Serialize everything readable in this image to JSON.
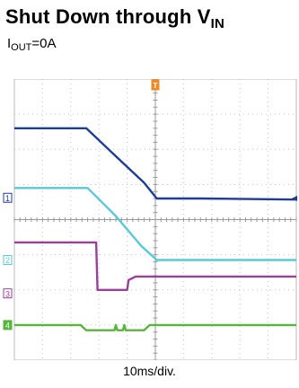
{
  "title": {
    "main": "Shut Down through V",
    "sub": "IN"
  },
  "subtitle": {
    "main": "I",
    "sub": "OUT",
    "rest": "=0A"
  },
  "chart_data": {
    "type": "line",
    "xlabel": "10ms/div.",
    "grid": true,
    "x_divisions": 10,
    "y_divisions": 8,
    "trigger_marker": "T",
    "right_marker": "◂",
    "series": [
      {
        "channel": "1",
        "color": "#1f3c96",
        "x": [
          0,
          2.55,
          3.8,
          4.6,
          5.05,
          6.6,
          10
        ],
        "y": [
          6.6,
          6.6,
          5.65,
          5.05,
          4.6,
          4.6,
          4.57
        ],
        "ground": 4.62
      },
      {
        "channel": "2",
        "color": "#5bc8d8",
        "x": [
          0,
          2.6,
          3.6,
          4.5,
          5.05,
          6.6,
          10
        ],
        "y": [
          4.9,
          4.9,
          4.1,
          3.25,
          2.85,
          2.85,
          2.85
        ],
        "ground": 2.85
      },
      {
        "channel": "3",
        "color": "#9a3f9c",
        "x": [
          0,
          2.9,
          2.95,
          4.0,
          4.05,
          4.3,
          10
        ],
        "y": [
          3.35,
          3.35,
          2.0,
          2.0,
          2.28,
          2.38,
          2.38
        ],
        "ground": 1.9
      },
      {
        "channel": "4",
        "color": "#57b53b",
        "x": [
          0,
          2.35,
          2.55,
          3.55,
          3.6,
          3.65,
          3.85,
          3.9,
          3.95,
          4.6,
          4.8,
          10
        ],
        "y": [
          1.0,
          1.0,
          0.85,
          0.85,
          1.0,
          0.85,
          0.85,
          1.0,
          0.85,
          0.85,
          1.0,
          1.0
        ],
        "ground": 1.0
      }
    ]
  }
}
